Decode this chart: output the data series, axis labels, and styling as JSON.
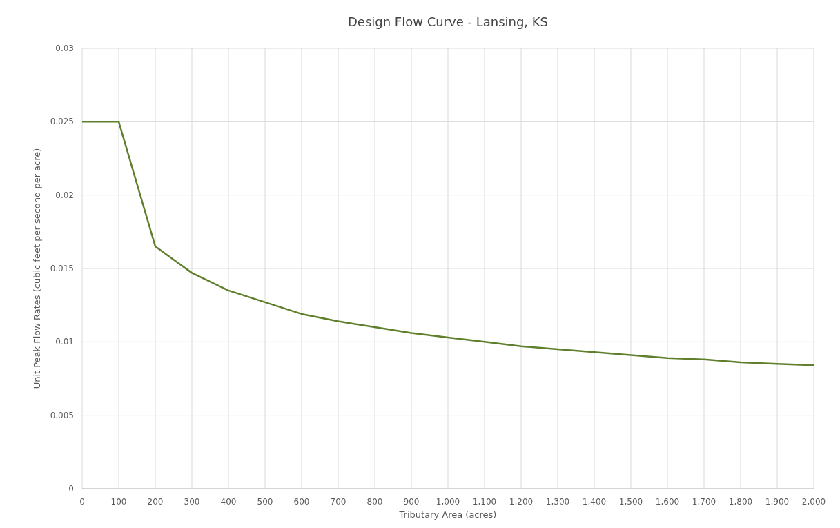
{
  "chart_data": {
    "type": "line",
    "title": "Design Flow Curve - Lansing, KS",
    "xlabel": "Tributary Area (acres)",
    "ylabel": "Unit Peak Flow Rates (cubic feet per second per acre)",
    "x": [
      0,
      100,
      200,
      300,
      400,
      500,
      600,
      700,
      800,
      900,
      1000,
      1100,
      1200,
      1300,
      1400,
      1500,
      1600,
      1700,
      1800,
      1900,
      2000
    ],
    "series": [
      {
        "color": "#5f7f2c",
        "values": [
          0.025,
          0.025,
          0.0165,
          0.0147,
          0.0135,
          0.0127,
          0.0119,
          0.0114,
          0.011,
          0.0106,
          0.0103,
          0.01,
          0.0097,
          0.0095,
          0.0093,
          0.0091,
          0.0089,
          0.0088,
          0.0086,
          0.0085,
          0.0084
        ]
      }
    ],
    "xlim": [
      0,
      2000
    ],
    "xticks": [
      0,
      100,
      200,
      300,
      400,
      500,
      600,
      700,
      800,
      900,
      {
        "value": 1000,
        "label": "1,000"
      },
      {
        "value": 1100,
        "label": "1,100"
      },
      {
        "value": 1200,
        "label": "1,200"
      },
      {
        "value": 1300,
        "label": "1,300"
      },
      {
        "value": 1400,
        "label": "1,400"
      },
      {
        "value": 1500,
        "label": "1,500"
      },
      {
        "value": 1600,
        "label": "1,600"
      },
      {
        "value": 1700,
        "label": "1,700"
      },
      {
        "value": 1800,
        "label": "1,800"
      },
      {
        "value": 1900,
        "label": "1,900"
      },
      {
        "value": 2000,
        "label": "2,000"
      }
    ],
    "ylim": [
      0,
      0.03
    ],
    "yticks": [
      0,
      0.005,
      0.01,
      0.015,
      0.02,
      0.025,
      0.03
    ],
    "grid": true,
    "marker": "none",
    "line_style": "solid"
  }
}
